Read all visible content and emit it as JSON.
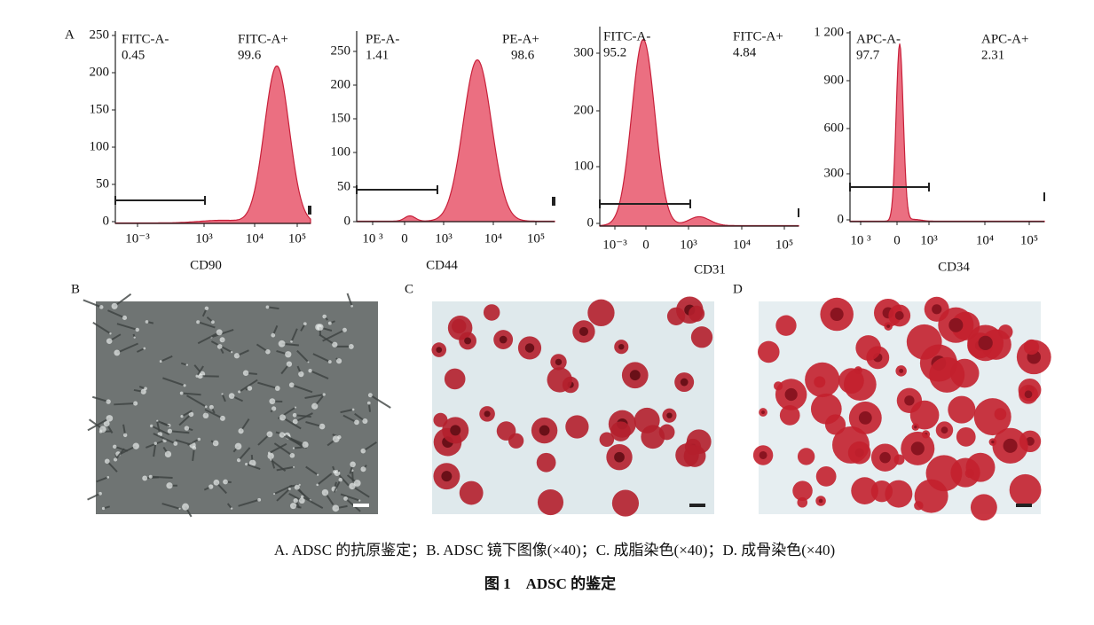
{
  "panel_a_label": "A",
  "histograms": [
    {
      "y_ticks": [
        "250",
        "200",
        "150",
        "100",
        "50",
        "0"
      ],
      "x_ticks": [
        "10⁻³",
        "10³",
        "10⁴",
        "10⁵"
      ],
      "x_label": "CD90",
      "neg_gate": "FITC-A-",
      "neg_pct": "0.45",
      "pos_gate": "FITC-A+",
      "pos_pct": "99.6"
    },
    {
      "y_ticks": [
        "250",
        "200",
        "150",
        "100",
        "50",
        "0"
      ],
      "x_ticks": [
        "10 ³",
        "0",
        "10³",
        "10⁴",
        "10⁵"
      ],
      "x_label": "CD44",
      "neg_gate": "PE-A-",
      "neg_pct": "1.41",
      "pos_gate": "PE-A+",
      "pos_pct": "98.6"
    },
    {
      "y_ticks": [
        "300",
        "200",
        "100",
        "0"
      ],
      "x_ticks": [
        "10⁻³",
        "0",
        "10³",
        "10⁴",
        "10⁵"
      ],
      "x_label": "CD31",
      "neg_gate": "FITC-A-",
      "neg_pct": "95.2",
      "pos_gate": "FITC-A+",
      "pos_pct": "4.84"
    },
    {
      "y_ticks": [
        "1 200",
        "900",
        "600",
        "300",
        "0"
      ],
      "x_ticks": [
        "10 ³",
        "0",
        "10³",
        "10⁴",
        "10⁵"
      ],
      "x_label": "CD34",
      "neg_gate": "APC-A-",
      "neg_pct": "97.7",
      "pos_gate": "APC-A+",
      "pos_pct": "2.31"
    }
  ],
  "panels": [
    {
      "label": "B"
    },
    {
      "label": "C"
    },
    {
      "label": "D"
    }
  ],
  "caption": "A. ADSC 的抗原鉴定；B. ADSC 镜下图像(×40)；C. 成脂染色(×40)；D. 成骨染色(×40)",
  "figure_title": "图 1　ADSC 的鉴定"
}
